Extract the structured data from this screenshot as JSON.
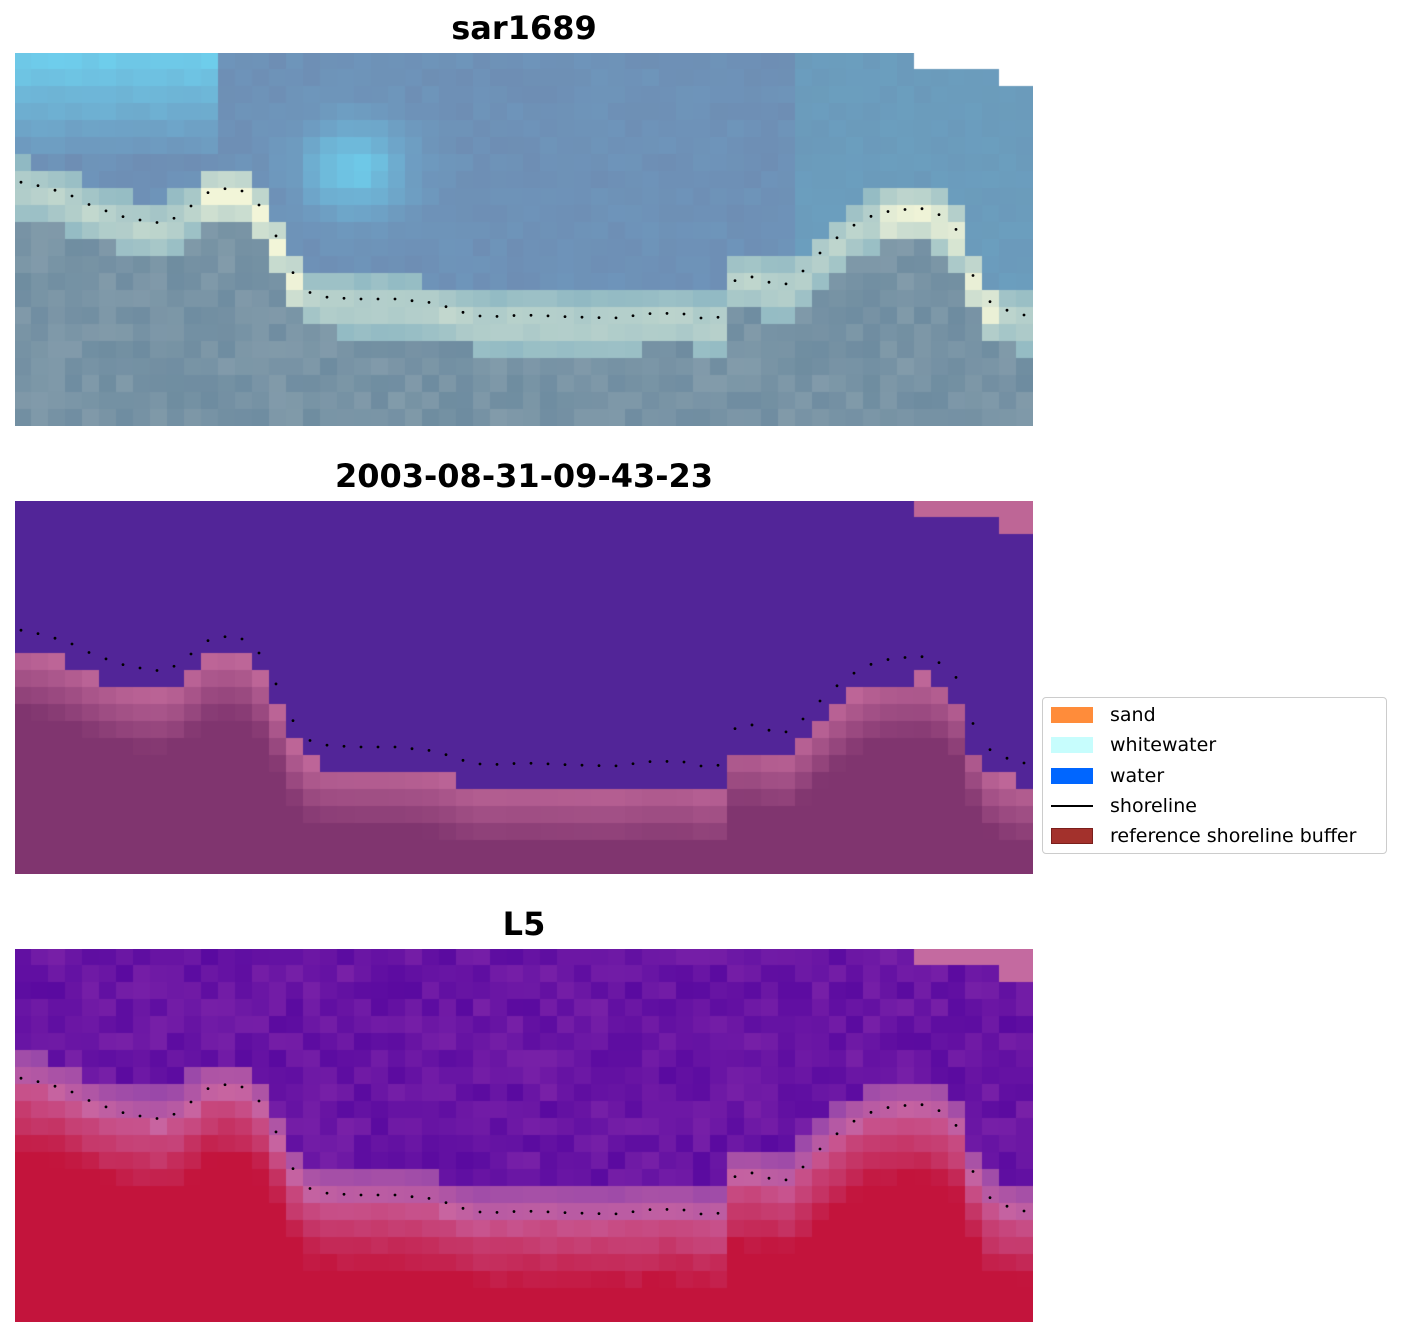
{
  "panels": [
    {
      "id": "rgb",
      "title": "sar1689"
    },
    {
      "id": "classified",
      "title": "2003-08-31-09-43-23"
    },
    {
      "id": "index",
      "title": "L5"
    }
  ],
  "legend": {
    "items": [
      {
        "label": "sand",
        "kind": "patch",
        "color": "#ff8c3a"
      },
      {
        "label": "whitewater",
        "kind": "patch",
        "color": "#c7fdfd"
      },
      {
        "label": "water",
        "kind": "patch",
        "color": "#0066ff"
      },
      {
        "label": "shoreline",
        "kind": "line",
        "color": "#000000"
      },
      {
        "label": "reference shoreline buffer",
        "kind": "patch",
        "color": "#a3312c"
      }
    ]
  },
  "colors": {
    "water_purple": "#522598",
    "land_maroon": "#80356f",
    "land_pink": "#b85a94",
    "sand_buffer": "#c06a9a",
    "ocean_steel": "#6b8fb4",
    "surf_white": "#f2f5d8",
    "index_purple": "#6a1aa0",
    "index_red": "#c41e45"
  }
}
